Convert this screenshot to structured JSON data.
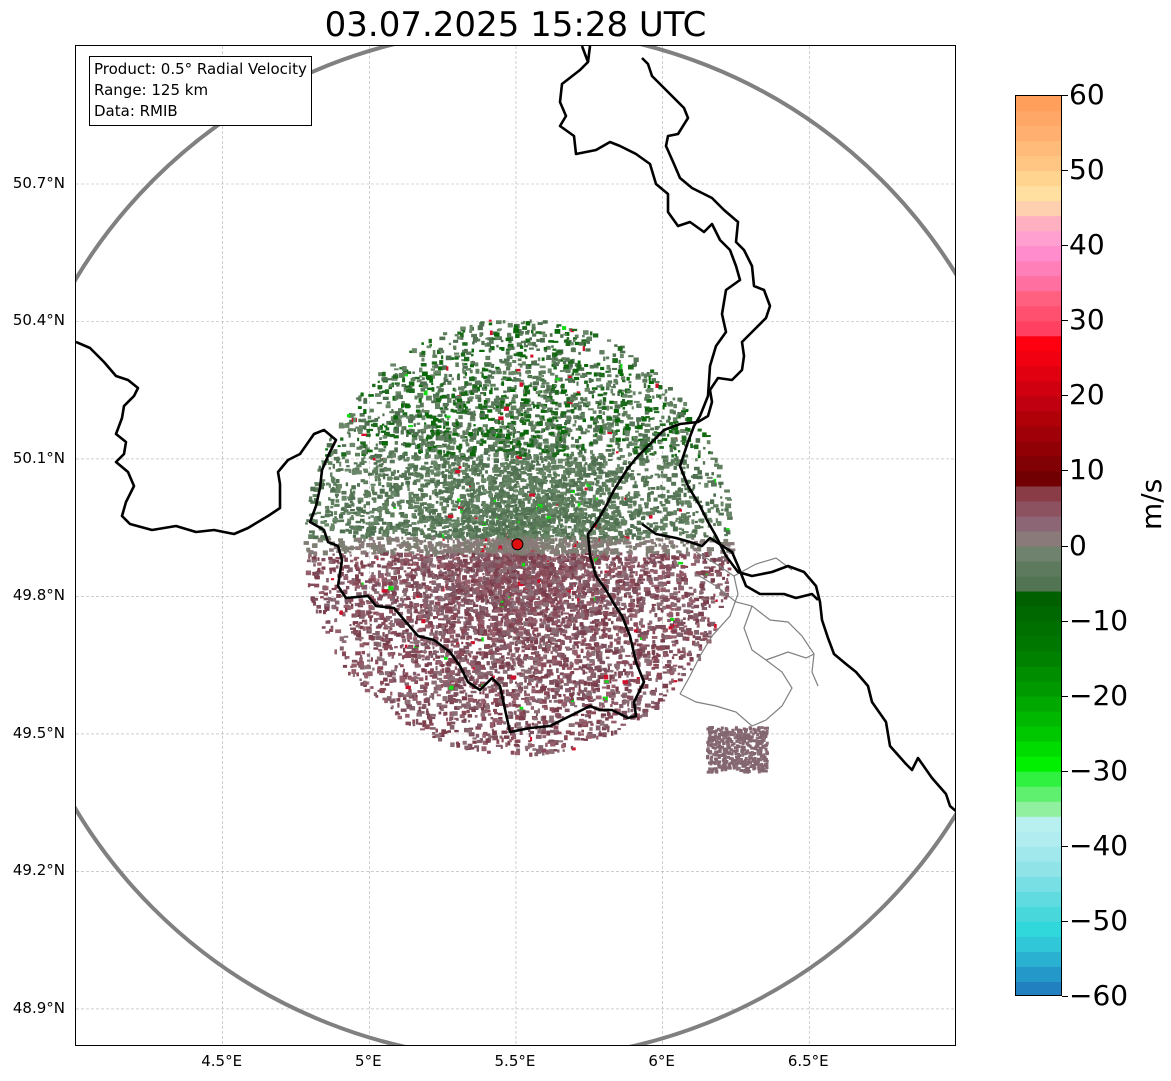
{
  "title": "03.07.2025 15:28 UTC",
  "info": {
    "product": "Product: 0.5° Radial Velocity",
    "range": "Range: 125 km",
    "data": "Data: RMIB"
  },
  "map": {
    "lon_range": [
      4.0,
      7.0
    ],
    "lat_range": [
      48.8,
      51.0
    ],
    "x_ticks": [
      {
        "value": 4.5,
        "label": "4.5°E"
      },
      {
        "value": 5.0,
        "label": "5°E"
      },
      {
        "value": 5.5,
        "label": "5.5°E"
      },
      {
        "value": 6.0,
        "label": "6°E"
      },
      {
        "value": 6.5,
        "label": "6.5°E"
      }
    ],
    "y_ticks": [
      {
        "value": 50.7,
        "label": "50.7°N"
      },
      {
        "value": 50.4,
        "label": "50.4°N"
      },
      {
        "value": 50.1,
        "label": "50.1°N"
      },
      {
        "value": 49.8,
        "label": "49.8°N"
      },
      {
        "value": 49.5,
        "label": "49.5°N"
      },
      {
        "value": 49.2,
        "label": "49.2°N"
      },
      {
        "value": 48.9,
        "label": "48.9°N"
      }
    ],
    "grid": true,
    "radar_site": {
      "lon": 5.505,
      "lat": 49.914
    },
    "range_km": 125,
    "colors": {
      "range_ring": "#808080",
      "border": "#000000",
      "admin": "#808080",
      "radar_marker": "#e01010"
    }
  },
  "colorbar": {
    "label": "m/s",
    "min": -60,
    "max": 60,
    "ticks": [
      {
        "value": 60,
        "label": "60"
      },
      {
        "value": 50,
        "label": "50"
      },
      {
        "value": 40,
        "label": "40"
      },
      {
        "value": 30,
        "label": "30"
      },
      {
        "value": 20,
        "label": "20"
      },
      {
        "value": 10,
        "label": "10"
      },
      {
        "value": 0,
        "label": "0"
      },
      {
        "value": -10,
        "label": "−10"
      },
      {
        "value": -20,
        "label": "−20"
      },
      {
        "value": -30,
        "label": "−30"
      },
      {
        "value": -40,
        "label": "−40"
      },
      {
        "value": -50,
        "label": "−50"
      },
      {
        "value": -60,
        "label": "−60"
      }
    ],
    "bands": [
      {
        "from": 58,
        "to": 60,
        "color": "#ff9f5b"
      },
      {
        "from": 56,
        "to": 58,
        "color": "#ffa766"
      },
      {
        "from": 54,
        "to": 56,
        "color": "#ffb070"
      },
      {
        "from": 52,
        "to": 54,
        "color": "#ffbb7a"
      },
      {
        "from": 50,
        "to": 52,
        "color": "#ffc683"
      },
      {
        "from": 48,
        "to": 50,
        "color": "#ffd48f"
      },
      {
        "from": 46,
        "to": 48,
        "color": "#ffe0a0"
      },
      {
        "from": 44,
        "to": 46,
        "color": "#ffd0b0"
      },
      {
        "from": 42,
        "to": 44,
        "color": "#ffb0c0"
      },
      {
        "from": 40,
        "to": 42,
        "color": "#ffa0d0"
      },
      {
        "from": 38,
        "to": 40,
        "color": "#ff8ccc"
      },
      {
        "from": 36,
        "to": 38,
        "color": "#ff80b8"
      },
      {
        "from": 34,
        "to": 36,
        "color": "#ff70a0"
      },
      {
        "from": 32,
        "to": 34,
        "color": "#ff6080"
      },
      {
        "from": 30,
        "to": 32,
        "color": "#ff5070"
      },
      {
        "from": 28,
        "to": 30,
        "color": "#ff4060"
      },
      {
        "from": 26,
        "to": 28,
        "color": "#ff0010"
      },
      {
        "from": 24,
        "to": 26,
        "color": "#f00010"
      },
      {
        "from": 22,
        "to": 24,
        "color": "#e00010"
      },
      {
        "from": 20,
        "to": 22,
        "color": "#d00010"
      },
      {
        "from": 18,
        "to": 20,
        "color": "#c00010"
      },
      {
        "from": 16,
        "to": 18,
        "color": "#b00008"
      },
      {
        "from": 14,
        "to": 16,
        "color": "#a00008"
      },
      {
        "from": 12,
        "to": 14,
        "color": "#900005"
      },
      {
        "from": 10,
        "to": 12,
        "color": "#800004"
      },
      {
        "from": 8,
        "to": 10,
        "color": "#700002"
      },
      {
        "from": 6,
        "to": 8,
        "color": "#8a3c46"
      },
      {
        "from": 4,
        "to": 6,
        "color": "#8c5260"
      },
      {
        "from": 2,
        "to": 4,
        "color": "#8c6674"
      },
      {
        "from": 0,
        "to": 2,
        "color": "#8a7a7a"
      },
      {
        "from": -2,
        "to": 0,
        "color": "#6f826e"
      },
      {
        "from": -4,
        "to": -2,
        "color": "#5e7a5e"
      },
      {
        "from": -6,
        "to": -4,
        "color": "#527452"
      },
      {
        "from": -8,
        "to": -6,
        "color": "#006000"
      },
      {
        "from": -10,
        "to": -8,
        "color": "#006800"
      },
      {
        "from": -12,
        "to": -10,
        "color": "#007000"
      },
      {
        "from": -14,
        "to": -12,
        "color": "#007800"
      },
      {
        "from": -16,
        "to": -14,
        "color": "#008200"
      },
      {
        "from": -18,
        "to": -16,
        "color": "#008e00"
      },
      {
        "from": -20,
        "to": -18,
        "color": "#009a00"
      },
      {
        "from": -22,
        "to": -20,
        "color": "#00a800"
      },
      {
        "from": -24,
        "to": -22,
        "color": "#00b800"
      },
      {
        "from": -26,
        "to": -24,
        "color": "#00c800"
      },
      {
        "from": -28,
        "to": -26,
        "color": "#00dc00"
      },
      {
        "from": -30,
        "to": -28,
        "color": "#00f000"
      },
      {
        "from": -32,
        "to": -30,
        "color": "#30f040"
      },
      {
        "from": -34,
        "to": -32,
        "color": "#60f070"
      },
      {
        "from": -36,
        "to": -34,
        "color": "#90f0a0"
      },
      {
        "from": -38,
        "to": -36,
        "color": "#b8f0f0"
      },
      {
        "from": -40,
        "to": -38,
        "color": "#b0ecf0"
      },
      {
        "from": -42,
        "to": -40,
        "color": "#a0e8ec"
      },
      {
        "from": -44,
        "to": -42,
        "color": "#90e4e8"
      },
      {
        "from": -46,
        "to": -44,
        "color": "#78e0e4"
      },
      {
        "from": -48,
        "to": -46,
        "color": "#60dce0"
      },
      {
        "from": -50,
        "to": -48,
        "color": "#48d8dc"
      },
      {
        "from": -52,
        "to": -50,
        "color": "#30d8dc"
      },
      {
        "from": -54,
        "to": -52,
        "color": "#30c8d8"
      },
      {
        "from": -56,
        "to": -54,
        "color": "#2ab0d0"
      },
      {
        "from": -58,
        "to": -56,
        "color": "#2498c8"
      },
      {
        "from": -60,
        "to": -58,
        "color": "#2080c0"
      }
    ]
  }
}
